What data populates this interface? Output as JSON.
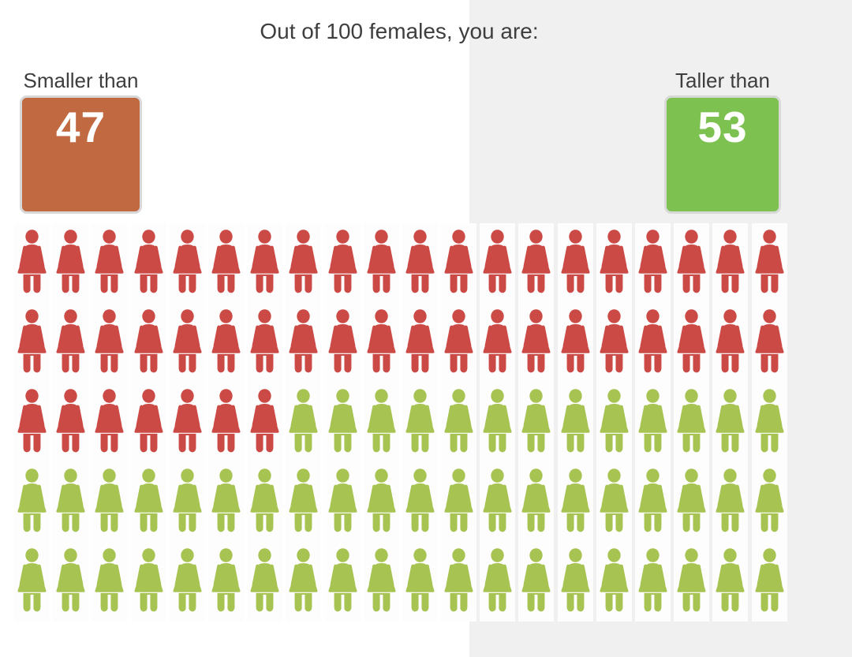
{
  "title": "Out of 100 females, you are:",
  "colors": {
    "panel_bg": "#f0f0f0",
    "cell_bg": "#fdfdfd",
    "smaller_box": "#c16a41",
    "taller_box": "#7dc250",
    "red_icon": "#cc4a45",
    "green_icon": "#a7c351",
    "label_text": "#3e3e3e",
    "value_text": "#ffffff",
    "box_border": "#d8d8d8"
  },
  "stats": {
    "smaller": {
      "label": "Smaller than",
      "value": "47"
    },
    "taller": {
      "label": "Taller than",
      "value": "53"
    }
  },
  "chart_data": {
    "type": "pictogram",
    "title": "Out of 100 females, you are:",
    "total_icons": 100,
    "icon": "female-person",
    "columns": 20,
    "rows": 5,
    "fill_order": "row-major from top-left: first 47 icons red (smaller), remaining 53 green (taller)",
    "series": [
      {
        "name": "Smaller than",
        "value": 47,
        "color": "#cc4a45"
      },
      {
        "name": "Taller than",
        "value": 53,
        "color": "#a7c351"
      }
    ]
  }
}
